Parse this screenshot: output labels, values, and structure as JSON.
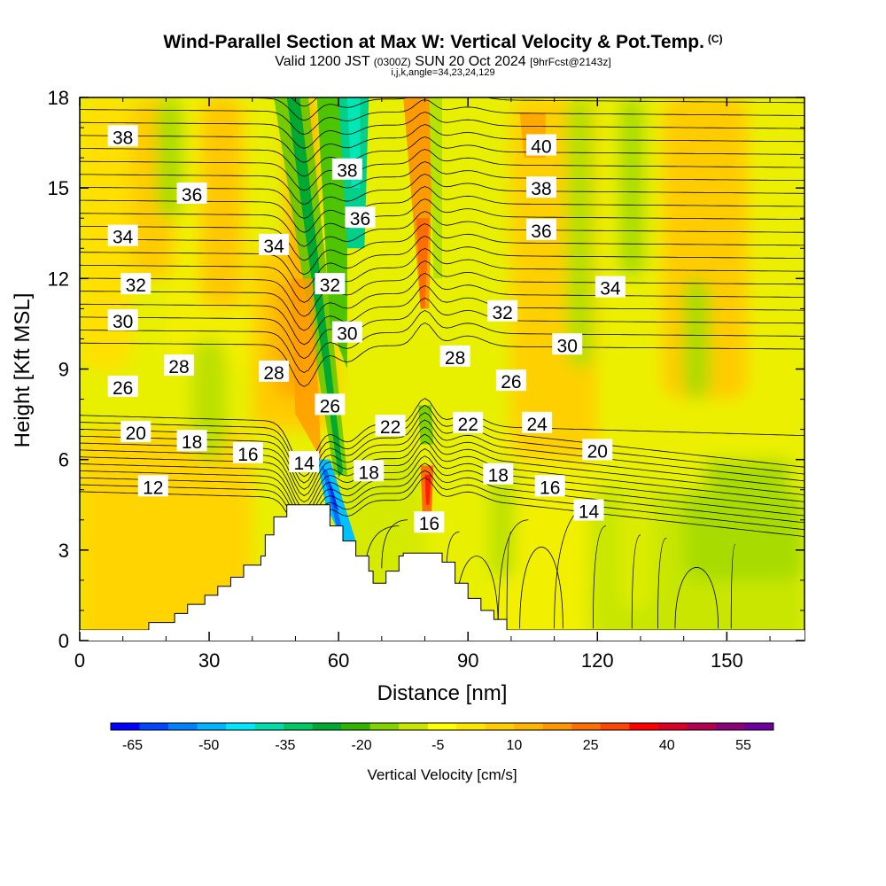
{
  "title": {
    "main": "Wind-Parallel Section at Max W: Vertical Velocity & Pot.Temp.",
    "copyright": "(C)",
    "valid_prefix": "Valid 1200 JST",
    "valid_utc": "(0300Z)",
    "valid_date": "SUN 20 Oct 2024",
    "forecast": "[9hrFcst@2143z]",
    "indices": "i,j,k,angle=34,23,24,129"
  },
  "chart_data": {
    "type": "heatmap",
    "xlabel": "Distance [nm]",
    "ylabel": "Height [Kft MSL]",
    "xlim": [
      0,
      168
    ],
    "ylim": [
      0,
      18
    ],
    "x_ticks": [
      "0",
      "30",
      "60",
      "90",
      "120",
      "150"
    ],
    "y_ticks": [
      "0",
      "3",
      "6",
      "9",
      "12",
      "15",
      "18"
    ],
    "colorbar": {
      "label": "Vertical Velocity [cm/s]",
      "tick_labels": [
        "-65",
        "-50",
        "-35",
        "-20",
        "-5",
        "10",
        "25",
        "40",
        "55"
      ],
      "colors": [
        "#0000ff",
        "#0046ff",
        "#0082ff",
        "#00b4ff",
        "#00e6ff",
        "#00dcaa",
        "#00c864",
        "#00aa32",
        "#32b400",
        "#82d200",
        "#c8e600",
        "#ffff00",
        "#ffe600",
        "#ffcd00",
        "#ffb400",
        "#ff9600",
        "#ff6e00",
        "#ff4600",
        "#ff0000",
        "#dc0028",
        "#b40050",
        "#8c0078",
        "#6e00a0"
      ]
    },
    "terrain_profile": [
      [
        0,
        0.35
      ],
      [
        16,
        0.35
      ],
      [
        16,
        0.6
      ],
      [
        22,
        0.6
      ],
      [
        22,
        0.9
      ],
      [
        25,
        0.9
      ],
      [
        25,
        1.2
      ],
      [
        29,
        1.2
      ],
      [
        29,
        1.5
      ],
      [
        32,
        1.5
      ],
      [
        32,
        1.8
      ],
      [
        35,
        1.8
      ],
      [
        35,
        2.1
      ],
      [
        38,
        2.1
      ],
      [
        38,
        2.5
      ],
      [
        42,
        2.5
      ],
      [
        42,
        2.8
      ],
      [
        43,
        2.8
      ],
      [
        43,
        3.5
      ],
      [
        45,
        3.5
      ],
      [
        45,
        4.1
      ],
      [
        48,
        4.1
      ],
      [
        48,
        4.5
      ],
      [
        58,
        4.5
      ],
      [
        58,
        3.8
      ],
      [
        61,
        3.8
      ],
      [
        61,
        3.3
      ],
      [
        64,
        3.3
      ],
      [
        64,
        2.8
      ],
      [
        67,
        2.8
      ],
      [
        67,
        2.3
      ],
      [
        68,
        2.3
      ],
      [
        68,
        1.9
      ],
      [
        71,
        1.9
      ],
      [
        71,
        2.3
      ],
      [
        74,
        2.3
      ],
      [
        74,
        2.8
      ],
      [
        75,
        2.8
      ],
      [
        75,
        2.9
      ],
      [
        84,
        2.9
      ],
      [
        84,
        2.6
      ],
      [
        87,
        2.6
      ],
      [
        87,
        1.9
      ],
      [
        90,
        1.9
      ],
      [
        90,
        1.4
      ],
      [
        93,
        1.4
      ],
      [
        93,
        1.0
      ],
      [
        96,
        1.0
      ],
      [
        96,
        0.7
      ],
      [
        99,
        0.7
      ],
      [
        99,
        0.35
      ],
      [
        168,
        0.35
      ]
    ],
    "theta_contour_labels": [
      {
        "text": "38",
        "x": 10,
        "y": 16.7
      },
      {
        "text": "36",
        "x": 26,
        "y": 14.8
      },
      {
        "text": "34",
        "x": 10,
        "y": 13.4
      },
      {
        "text": "32",
        "x": 13,
        "y": 11.8
      },
      {
        "text": "30",
        "x": 10,
        "y": 10.6
      },
      {
        "text": "28",
        "x": 23,
        "y": 9.1
      },
      {
        "text": "26",
        "x": 10,
        "y": 8.4
      },
      {
        "text": "20",
        "x": 13,
        "y": 6.9
      },
      {
        "text": "18",
        "x": 26,
        "y": 6.6
      },
      {
        "text": "16",
        "x": 39,
        "y": 6.2
      },
      {
        "text": "14",
        "x": 52,
        "y": 5.9
      },
      {
        "text": "12",
        "x": 17,
        "y": 5.1
      },
      {
        "text": "34",
        "x": 45,
        "y": 13.1
      },
      {
        "text": "38",
        "x": 62,
        "y": 15.6
      },
      {
        "text": "36",
        "x": 65,
        "y": 14.0
      },
      {
        "text": "32",
        "x": 58,
        "y": 11.8
      },
      {
        "text": "30",
        "x": 62,
        "y": 10.2
      },
      {
        "text": "28",
        "x": 45,
        "y": 8.9
      },
      {
        "text": "26",
        "x": 58,
        "y": 7.8
      },
      {
        "text": "22",
        "x": 72,
        "y": 7.1
      },
      {
        "text": "18",
        "x": 67,
        "y": 5.6
      },
      {
        "text": "16",
        "x": 81,
        "y": 3.9
      },
      {
        "text": "40",
        "x": 107,
        "y": 16.4
      },
      {
        "text": "38",
        "x": 107,
        "y": 15.0
      },
      {
        "text": "36",
        "x": 107,
        "y": 13.6
      },
      {
        "text": "34",
        "x": 123,
        "y": 11.7
      },
      {
        "text": "32",
        "x": 98,
        "y": 10.9
      },
      {
        "text": "30",
        "x": 113,
        "y": 9.8
      },
      {
        "text": "28",
        "x": 87,
        "y": 9.4
      },
      {
        "text": "26",
        "x": 100,
        "y": 8.6
      },
      {
        "text": "22",
        "x": 90,
        "y": 7.2
      },
      {
        "text": "24",
        "x": 106,
        "y": 7.2
      },
      {
        "text": "20",
        "x": 120,
        "y": 6.3
      },
      {
        "text": "18",
        "x": 97,
        "y": 5.5
      },
      {
        "text": "16",
        "x": 109,
        "y": 5.1
      },
      {
        "text": "14",
        "x": 118,
        "y": 4.3
      }
    ]
  }
}
